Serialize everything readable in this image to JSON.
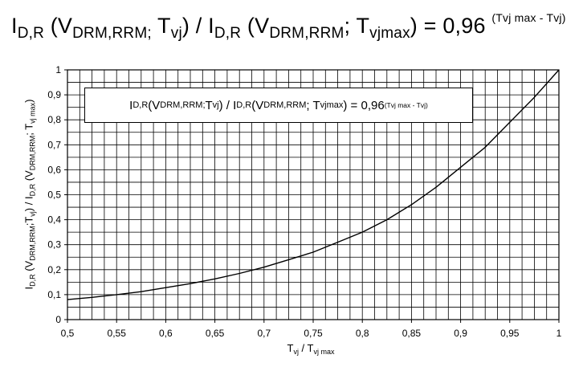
{
  "chart_data": {
    "type": "line",
    "title": {
      "lead": "I",
      "s1": "D,R",
      "t1": " (V",
      "s2": "DRM,RRM;",
      "t2": " T",
      "s3": "vj",
      "t3": ") / I",
      "s4": "D,R",
      "t4": " (V",
      "s5": "DRM,RRM",
      "t5": "; T",
      "s6": "vjmax",
      "t6": ") = 0,96 ",
      "exp": "(Tvj max - Tvj)"
    },
    "legend": {
      "lead": "I",
      "s1": "D,R",
      "t1": "(V",
      "s2": "DRM,RRM;",
      "t2": " T",
      "s3": "vj",
      "t3": ") / I",
      "s4": "D,R",
      "t4": " (V",
      "s5": "DRM,RRM",
      "t5": "; T",
      "s6": "vjmax",
      "t6": ") = 0,96 ",
      "exp": "(Tvj max - Tvj)"
    },
    "ylabel": {
      "lead": "I",
      "s1": "D,R",
      "t1": " (V",
      "s2": "DRM,RRM",
      "t2": ";T",
      "s3": "vj",
      "t3": ") / I",
      "s4": "D,R",
      "t4": " (V",
      "s5": "DRM,RRM",
      "t5": "; T",
      "s6": "vj max",
      "t6": ")"
    },
    "xlabel": {
      "lead": "T",
      "s1": "vj",
      "t1": " / T",
      "s2": "vj max"
    },
    "x_ticks": [
      "0,5",
      "0,55",
      "0,6",
      "0,65",
      "0,7",
      "0,75",
      "0,8",
      "0,85",
      "0,9",
      "0,95",
      "1"
    ],
    "y_ticks": [
      "0",
      "0,1",
      "0,2",
      "0,3",
      "0,4",
      "0,5",
      "0,6",
      "0,7",
      "0,8",
      "0,9",
      "1"
    ],
    "xlim": [
      0.5,
      1
    ],
    "ylim": [
      0,
      1
    ],
    "grid": true,
    "minor_x_divisions": 4,
    "minor_y_divisions": 2,
    "series": [
      {
        "x": [
          0.5,
          0.525,
          0.55,
          0.575,
          0.6,
          0.625,
          0.65,
          0.675,
          0.7,
          0.725,
          0.75,
          0.775,
          0.8,
          0.825,
          0.85,
          0.875,
          0.9,
          0.925,
          0.95,
          0.975,
          1.0
        ],
        "values": [
          0.08,
          0.089,
          0.1,
          0.112,
          0.128,
          0.144,
          0.163,
          0.185,
          0.21,
          0.24,
          0.27,
          0.31,
          0.35,
          0.4,
          0.46,
          0.53,
          0.61,
          0.69,
          0.79,
          0.89,
          1.0
        ]
      }
    ],
    "line_color": "#000000"
  }
}
